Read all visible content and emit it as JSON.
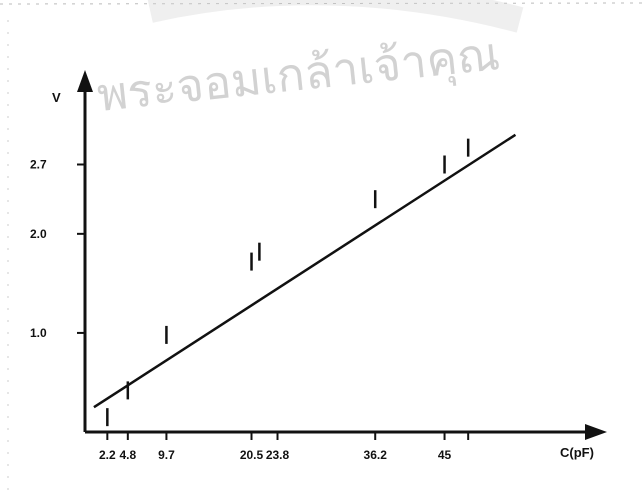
{
  "watermark": {
    "text": "พระจอมเกล้าเจ้าคุณ",
    "color": "#c8c8c8"
  },
  "chart_data": {
    "type": "scatter",
    "title": "",
    "xlabel": "C(pF)",
    "ylabel": "V",
    "xlim": [
      0,
      55
    ],
    "ylim": [
      0,
      3.25
    ],
    "x_ticks": [
      {
        "value": 2.2,
        "label": "2.2"
      },
      {
        "value": 4.8,
        "label": "4.8"
      },
      {
        "value": 9.7,
        "label": "9.7"
      },
      {
        "value": 20.5,
        "label": "20.5"
      },
      {
        "value": 23.8,
        "label": "23.8"
      },
      {
        "value": 36.2,
        "label": "36.2"
      },
      {
        "value": 45,
        "label": "45"
      }
    ],
    "y_ticks": [
      {
        "value": 1.0,
        "label": "1.0"
      },
      {
        "value": 2.0,
        "label": "2.0"
      },
      {
        "value": 2.7,
        "label": "2.7"
      }
    ],
    "series": [
      {
        "points": [
          {
            "x": 2.2,
            "y": 0.15
          },
          {
            "x": 4.8,
            "y": 0.42
          },
          {
            "x": 9.7,
            "y": 0.98
          },
          {
            "x": 20.5,
            "y": 1.72
          },
          {
            "x": 21.5,
            "y": 1.82
          },
          {
            "x": 36.2,
            "y": 2.35
          },
          {
            "x": 45,
            "y": 2.7
          },
          {
            "x": 48,
            "y": 2.87
          }
        ]
      }
    ],
    "fit_line": {
      "x": [
        0.5,
        54
      ],
      "y": [
        0.25,
        3.0
      ]
    },
    "grid": false,
    "colors": {
      "ink": "#111111"
    }
  }
}
